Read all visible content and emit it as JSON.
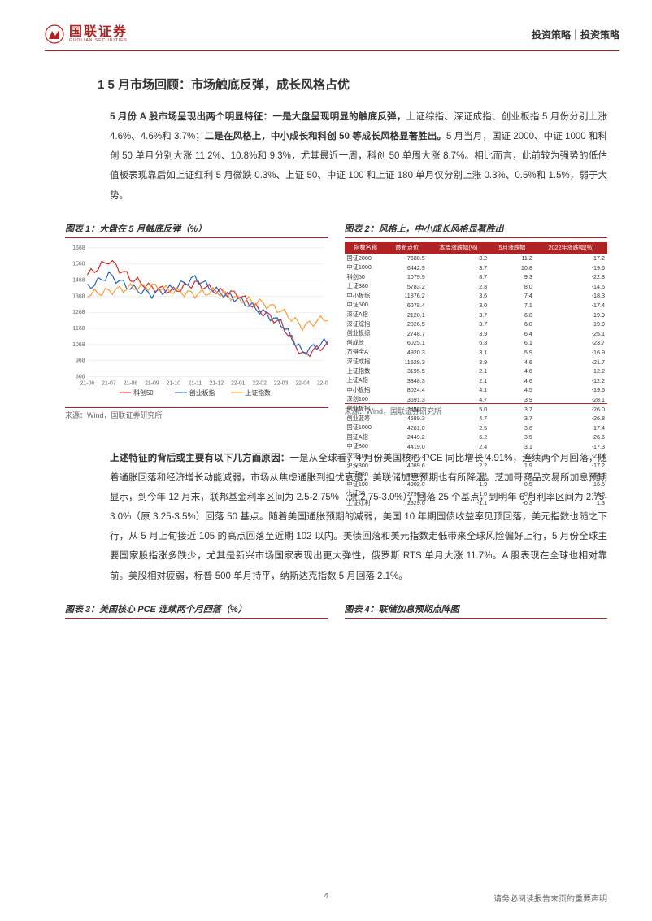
{
  "header": {
    "logo_cn": "国联证券",
    "logo_en": "GUOLIAN SECURITIES",
    "logo_color": "#b22222",
    "right_text": "投资策略｜投资策略"
  },
  "section1": {
    "title": "1  5 月市场回顾：市场触底反弹，成长风格占优",
    "para1_bold1": "5 月份 A 股市场呈现出两个明显特征：一是大盘呈现明显的触底反弹，",
    "para1_text1": "上证综指、深证成指、创业板指 5 月份分别上涨 4.6%、4.6%和 3.7%；",
    "para1_bold2": "二是在风格上，中小成长和科创 50 等成长风格显著胜出。",
    "para1_text2": "5 月当月，国证 2000、中证 1000 和科创 50 单月分别大涨 11.2%、10.8%和 9.3%，尤其最近一周，科创 50 单周大涨 8.7%。相比而言，此前较为强势的低估值板表现靠后如上证红利 5 月微跌 0.3%、上证 50、中证 100 和上证 180 单月仅分别上涨 0.3%、0.5%和 1.5%，弱于大势。"
  },
  "chart1": {
    "title": "图表 1：大盘在 5 月触底反弹（%）",
    "source": "来源：Wind，国联证券研究所",
    "ylim": [
      868,
      1668
    ],
    "ytick_step": 100,
    "xlabels": [
      "21-06",
      "21-07",
      "21-08",
      "21-09",
      "21-10",
      "21-11",
      "21-12",
      "22-01",
      "22-02",
      "22-03",
      "22-04",
      "22-05"
    ],
    "legend": [
      "科创50",
      "创业板指",
      "上证指数"
    ],
    "colors": [
      "#d62728",
      "#1f5fbf",
      "#ff9933"
    ],
    "series": {
      "kechuang50": [
        1500,
        1590,
        1480,
        1420,
        1400,
        1450,
        1400,
        1380,
        1280,
        1200,
        1000,
        1060
      ],
      "chuangyeban": [
        1420,
        1500,
        1420,
        1380,
        1420,
        1480,
        1400,
        1350,
        1280,
        1200,
        1020,
        1080
      ],
      "shangzheng": [
        1380,
        1400,
        1420,
        1430,
        1400,
        1380,
        1400,
        1350,
        1330,
        1280,
        1180,
        1230
      ]
    },
    "background_color": "#ffffff",
    "grid_color": "#e0e0e0",
    "axis_fontsize": 7
  },
  "chart2": {
    "title": "图表 2：风格上，中小成长风格显著胜出",
    "source": "来源：Wind，国联证券研究所",
    "columns": [
      "指数名称",
      "最新点位",
      "本周涨跌幅(%)",
      "5月涨跌幅",
      "2022年涨跌幅(%)"
    ],
    "rows": [
      [
        "国证2000",
        "7680.5",
        "3.2",
        "11.2",
        "-17.2"
      ],
      [
        "中证1000",
        "6442.9",
        "3.7",
        "10.8",
        "-19.6"
      ],
      [
        "科创50",
        "1079.9",
        "8.7",
        "9.3",
        "-22.8"
      ],
      [
        "上证380",
        "5783.2",
        "2.8",
        "8.0",
        "-14.6"
      ],
      [
        "中小板综",
        "11876.2",
        "3.6",
        "7.4",
        "-18.3"
      ],
      [
        "中证500",
        "6078.4",
        "3.0",
        "7.1",
        "-17.4"
      ],
      [
        "深证A指",
        "2120.1",
        "3.7",
        "6.8",
        "-19.9"
      ],
      [
        "深证综指",
        "2026.5",
        "3.7",
        "6.8",
        "-19.9"
      ],
      [
        "创业板综",
        "2748.7",
        "3.9",
        "6.4",
        "-25.1"
      ],
      [
        "创成长",
        "6025.1",
        "6.3",
        "6.1",
        "-23.7"
      ],
      [
        "万得全A",
        "4920.3",
        "3.1",
        "5.9",
        "-16.9"
      ],
      [
        "深证成指",
        "11628.3",
        "3.9",
        "4.6",
        "-21.7"
      ],
      [
        "上证指数",
        "3195.5",
        "2.1",
        "4.6",
        "-12.2"
      ],
      [
        "上证A指",
        "3348.3",
        "2.1",
        "4.6",
        "-12.2"
      ],
      [
        "中小板指",
        "8024.4",
        "4.1",
        "4.5",
        "-19.6"
      ],
      [
        "深创100",
        "3691.3",
        "4.7",
        "3.9",
        "-28.1"
      ],
      [
        "创业板指",
        "2458.3",
        "5.0",
        "3.7",
        "-26.0"
      ],
      [
        "创业蓝筹",
        "4689.3",
        "4.7",
        "3.7",
        "-26.8"
      ],
      [
        "国证1000",
        "4281.0",
        "2.5",
        "3.6",
        "-17.4"
      ],
      [
        "国证A指",
        "2449.2",
        "6.2",
        "3.5",
        "-26.6"
      ],
      [
        "中证800",
        "4419.0",
        "2.4",
        "3.1",
        "-17.3"
      ],
      [
        "深证100",
        "5381.3",
        "3.7",
        "3.0",
        "-21.8"
      ],
      [
        "沪深300",
        "4089.6",
        "2.2",
        "1.9",
        "-17.2"
      ],
      [
        "上证180",
        "8690.6",
        "1.4",
        "1.5",
        "-14.2"
      ],
      [
        "中证100",
        "4902.0",
        "1.9",
        "0.5",
        "-16.5"
      ],
      [
        "上证50",
        "2790.3",
        "1.0",
        "0.3",
        "-14.8"
      ],
      [
        "上证红利",
        "2829.0",
        "-1.1",
        "-0.3",
        "1.3"
      ]
    ],
    "header_bg": "#b22222",
    "header_color": "#ffffff",
    "neg_color": "#0a7d0a",
    "pos_color": "#b22222"
  },
  "para2": {
    "bold1": "上述特征的背后或主要有以下几方面原因：",
    "text": "一是从全球看，4 月份美国核心 PCE 同比增长 4.91%，连续两个月回落，随着通胀回落和经济增长动能减弱，市场从焦虑通胀到担忧衰退，美联储加息预期也有所降温。芝加哥商品交易所加息预期显示，到今年 12 月末，联邦基金利率区间为 2.5-2.75%（原 2.75-3.0%），回落 25 个基点，到明年 6 月利率区间为 2.75-3.0%（原 3.25-3.5%）回落 50 基点。随着美国通胀预期的减弱，美国 10 年期国债收益率见顶回落，美元指数也随之下行，从 5 月上旬接近 105 的高点回落至近期 102 以内。美债回落和美元指数走低带来全球风险偏好上行，5 月份全球主要国家股指涨多跌少，尤其是新兴市场国家表现出更大弹性，俄罗斯 RTS 单月大涨 11.7%。A 股表现在全球也相对靠前。美股相对疲弱，标普 500 单月持平，纳斯达克指数 5 月回落 2.1%。"
  },
  "chart3": {
    "title": "图表 3：美国核心 PCE 连续两个月回落（%）"
  },
  "chart4": {
    "title": "图表 4：联储加息预期点阵图"
  },
  "footer": {
    "page": "4",
    "disclaimer": "请务必阅读报告末页的重要声明"
  }
}
